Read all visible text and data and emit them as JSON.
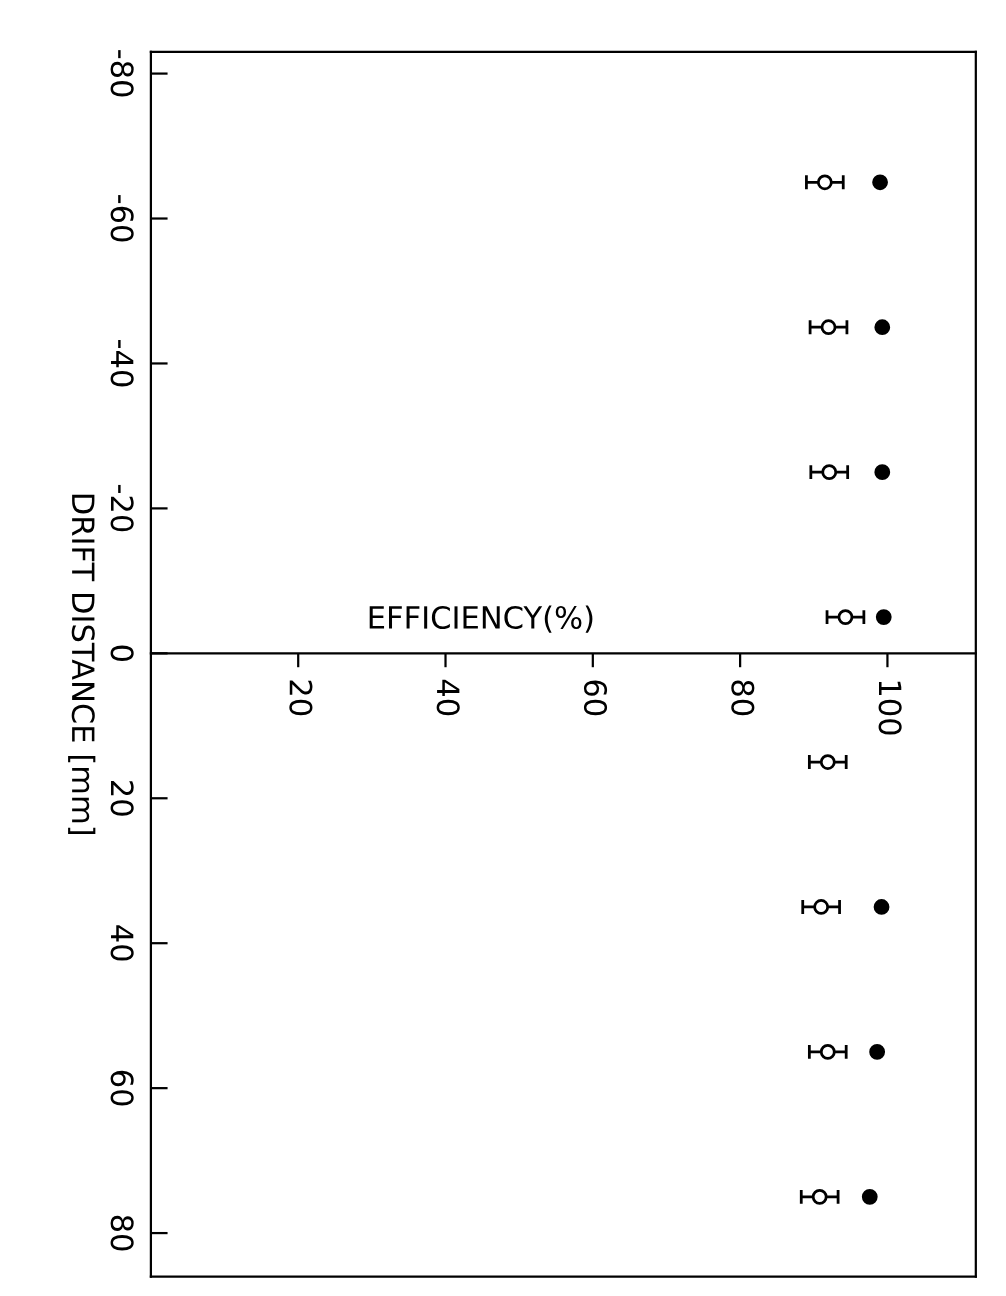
{
  "chart_data": {
    "type": "scatter",
    "xlabel": "EFFICIENCY(%)",
    "ylabel": "DRIFT DISTANCE [mm]",
    "orientation": "horizontal",
    "x": [
      -65,
      -45,
      -25,
      -5,
      15,
      35,
      55,
      75
    ],
    "series": [
      {
        "color": "#000000",
        "marker": "circle",
        "values": [
          99.0,
          99.3,
          99.3,
          99.5,
          null,
          99.2,
          98.6,
          97.6
        ]
      },
      {
        "color": "#000000",
        "marker": "circle",
        "values": [
          91.5,
          92.0,
          92.1,
          94.3,
          91.9,
          91.0,
          91.9,
          90.8
        ],
        "errors": [
          2.5,
          2.5,
          2.5,
          2.5,
          2.5,
          2.5,
          2.5,
          2.5
        ]
      }
    ],
    "xlim": [
      0,
      112
    ],
    "xticks": [
      20,
      40,
      60,
      80,
      100
    ],
    "ylim": [
      86,
      -83
    ],
    "yticks": [
      -80,
      -60,
      -40,
      -20,
      0,
      20,
      40,
      60,
      80
    ],
    "grid": false,
    "legend": false
  }
}
